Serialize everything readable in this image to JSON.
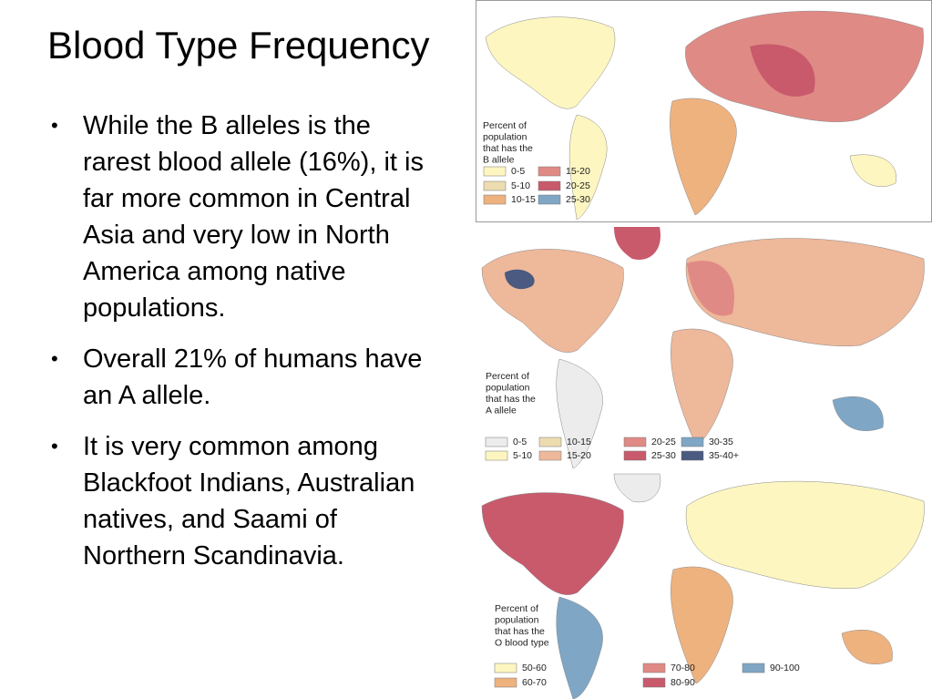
{
  "title": "Blood Type Frequency",
  "bullets": [
    "While the B alleles is the rarest blood allele (16%), it is far more common in Central Asia and very low in North America among native populations.",
    "Overall 21% of humans have an A allele.",
    "It is very common among Blackfoot Indians, Australian natives, and Saami of Northern Scandinavia."
  ],
  "maps": [
    {
      "caption": [
        "Percent of",
        "population",
        "that has the",
        "B allele"
      ],
      "legend": [
        {
          "label": "0-5",
          "color": "#fdf6c0"
        },
        {
          "label": "5-10",
          "color": "#ecdcb0"
        },
        {
          "label": "10-15",
          "color": "#eeb27f"
        },
        {
          "label": "15-20",
          "color": "#e08a85"
        },
        {
          "label": "20-25",
          "color": "#c85a6c"
        },
        {
          "label": "25-30",
          "color": "#7fa6c4"
        }
      ]
    },
    {
      "caption": [
        "Percent of",
        "population",
        "that has the",
        "A allele"
      ],
      "legend": [
        {
          "label": "0-5",
          "color": "#ececec"
        },
        {
          "label": "5-10",
          "color": "#fdf6c0"
        },
        {
          "label": "10-15",
          "color": "#ecdcb0"
        },
        {
          "label": "15-20",
          "color": "#eeb89a"
        },
        {
          "label": "20-25",
          "color": "#e08a85"
        },
        {
          "label": "25-30",
          "color": "#c85a6c"
        },
        {
          "label": "30-35",
          "color": "#7fa6c4"
        },
        {
          "label": "35-40+",
          "color": "#4a5a80"
        }
      ]
    },
    {
      "caption": [
        "Percent of",
        "population",
        "that has the",
        "O blood type"
      ],
      "legend": [
        {
          "label": "50-60",
          "color": "#fdf6c0"
        },
        {
          "label": "60-70",
          "color": "#eeb27f"
        },
        {
          "label": "70-80",
          "color": "#e08a85"
        },
        {
          "label": "80-90",
          "color": "#c85a6c"
        },
        {
          "label": "90-100",
          "color": "#7fa6c4"
        }
      ]
    }
  ]
}
